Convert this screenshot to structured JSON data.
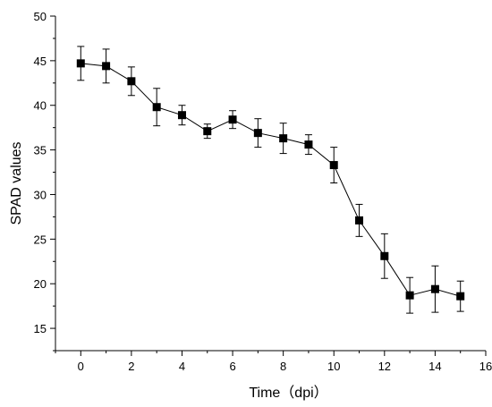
{
  "chart_data": {
    "type": "line",
    "title": "",
    "xlabel": "Time（dpi）",
    "ylabel": "SPAD values",
    "xlim": [
      -1,
      16
    ],
    "ylim": [
      12.5,
      50
    ],
    "grid": false,
    "x_ticks": [
      0,
      2,
      4,
      6,
      8,
      10,
      12,
      14,
      16
    ],
    "y_ticks": [
      15,
      20,
      25,
      30,
      35,
      40,
      45,
      50
    ],
    "x_tick_labels": [
      "0",
      "2",
      "4",
      "6",
      "8",
      "10",
      "12",
      "14",
      "16"
    ],
    "y_tick_labels": [
      "15",
      "20",
      "25",
      "30",
      "35",
      "40",
      "45",
      "50"
    ],
    "marker": "square",
    "color": "#000000",
    "x": [
      0,
      1,
      2,
      3,
      4,
      5,
      6,
      7,
      8,
      9,
      10,
      11,
      12,
      13,
      14,
      15
    ],
    "y": [
      44.7,
      44.4,
      42.7,
      39.8,
      38.9,
      37.1,
      38.4,
      36.9,
      36.3,
      35.6,
      33.3,
      27.1,
      23.1,
      18.7,
      19.4,
      18.6
    ],
    "error": [
      1.9,
      1.9,
      1.6,
      2.1,
      1.1,
      0.8,
      1.0,
      1.6,
      1.7,
      1.1,
      2.0,
      1.8,
      2.5,
      2.0,
      2.6,
      1.7
    ]
  }
}
